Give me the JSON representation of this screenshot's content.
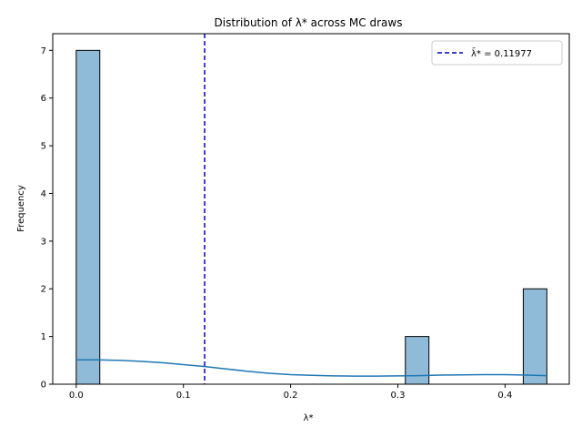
{
  "chart_data": {
    "type": "bar",
    "title": "Distribution of λ* across MC draws",
    "xlabel": "λ*",
    "ylabel": "Frequency",
    "xlim": [
      -0.0219,
      0.4599
    ],
    "ylim": [
      0,
      7.35
    ],
    "x_ticks": [
      {
        "value": 0.0,
        "label": "0.0"
      },
      {
        "value": 0.1,
        "label": "0.1"
      },
      {
        "value": 0.2,
        "label": "0.2"
      },
      {
        "value": 0.3,
        "label": "0.3"
      },
      {
        "value": 0.4,
        "label": "0.4"
      }
    ],
    "y_ticks": [
      {
        "value": 0,
        "label": "0"
      },
      {
        "value": 1,
        "label": "1"
      },
      {
        "value": 2,
        "label": "2"
      },
      {
        "value": 3,
        "label": "3"
      },
      {
        "value": 4,
        "label": "4"
      },
      {
        "value": 5,
        "label": "5"
      },
      {
        "value": 6,
        "label": "6"
      },
      {
        "value": 7,
        "label": "7"
      }
    ],
    "bins": [
      {
        "x0": 0.0,
        "x1": 0.022,
        "count": 7
      },
      {
        "x0": 0.307,
        "x1": 0.329,
        "count": 1
      },
      {
        "x0": 0.417,
        "x1": 0.439,
        "count": 2
      }
    ],
    "kde": {
      "x": [
        0.0,
        0.02,
        0.04,
        0.06,
        0.08,
        0.1,
        0.12,
        0.14,
        0.16,
        0.18,
        0.2,
        0.22,
        0.24,
        0.26,
        0.28,
        0.3,
        0.32,
        0.34,
        0.36,
        0.38,
        0.4,
        0.42,
        0.439
      ],
      "y": [
        0.51,
        0.51,
        0.5,
        0.48,
        0.45,
        0.41,
        0.37,
        0.32,
        0.27,
        0.23,
        0.2,
        0.185,
        0.175,
        0.17,
        0.17,
        0.175,
        0.18,
        0.19,
        0.195,
        0.2,
        0.2,
        0.19,
        0.18
      ]
    },
    "mean_line": {
      "value": 0.11977,
      "legend_label": "λ̄* = 0.11977"
    },
    "colors": {
      "bar_fill": "#8fbbd9",
      "bar_edge": "#000000",
      "kde_line": "#1f77b4",
      "mean_line": "#0000cc"
    },
    "grid": false,
    "legend_position": "top-right"
  }
}
